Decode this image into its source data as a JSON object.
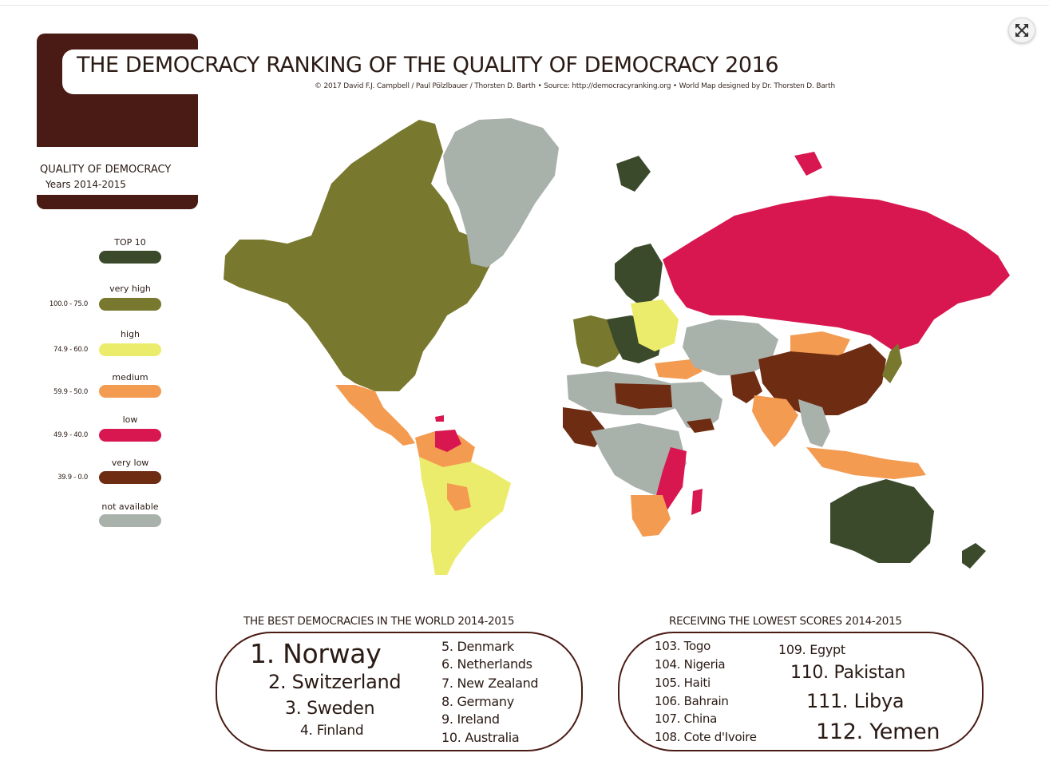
{
  "title": "THE DEMOCRACY RANKING OF THE QUALITY OF DEMOCRACY 2016",
  "credits": "© 2017 David F.J. Campbell / Paul Pölzlbauer / Thorsten D. Barth • Source: http://democracyranking.org • World Map designed by Dr. Thorsten D. Barth",
  "subtitle": {
    "heading": "QUALITY OF DEMOCRACY",
    "years": "Years 2014-2015"
  },
  "legend": [
    {
      "label": "TOP 10",
      "range": "",
      "color": "#3c4a2c"
    },
    {
      "label": "very high",
      "range": "100.0 - 75.0",
      "color": "#78782e"
    },
    {
      "label": "high",
      "range": "74.9 - 60.0",
      "color": "#ecec6c"
    },
    {
      "label": "medium",
      "range": "59.9 - 50.0",
      "color": "#f49b52"
    },
    {
      "label": "low",
      "range": "49.9 - 40.0",
      "color": "#d8164f"
    },
    {
      "label": "very low",
      "range": "39.9 - 0.0",
      "color": "#6e2c12"
    },
    {
      "label": "not available",
      "range": "",
      "color": "#a9b1ab"
    }
  ],
  "best": {
    "title": "THE BEST DEMOCRACIES IN THE WORLD 2014-2015",
    "items": [
      "1. Norway",
      "2. Switzerland",
      "3. Sweden",
      "4. Finland",
      "5. Denmark",
      "6. Netherlands",
      "7. New Zealand",
      "8. Germany",
      "9. Ireland",
      "10. Australia"
    ]
  },
  "lowest": {
    "title": "RECEIVING THE LOWEST SCORES 2014-2015",
    "items": [
      "103. Togo",
      "104. Nigeria",
      "105. Haiti",
      "106. Bahrain",
      "107. China",
      "108. Cote d'Ivoire",
      "109. Egypt",
      "110. Pakistan",
      "111. Libya",
      "112. Yemen"
    ]
  },
  "controls": {
    "expand_icon": "expand-arrows-icon"
  }
}
